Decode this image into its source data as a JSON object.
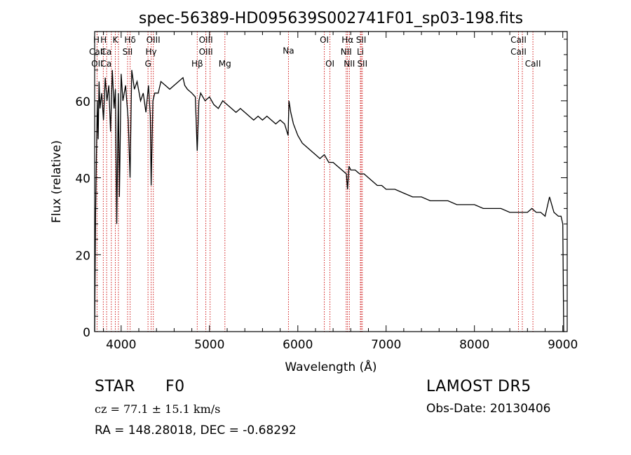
{
  "chart_data": {
    "type": "line",
    "title": "spec-56389-HD095639S002741F01_sp03-198.fits",
    "xlabel": "Wavelength (Å)",
    "ylabel": "Flux (relative)",
    "xlim": [
      3700,
      9050
    ],
    "ylim": [
      0,
      78
    ],
    "x_ticks": [
      4000,
      5000,
      6000,
      7000,
      8000,
      9000
    ],
    "y_ticks": [
      0,
      20,
      40,
      60
    ],
    "grid": false,
    "series": [
      {
        "x": [
          3700,
          3710,
          3720,
          3730,
          3740,
          3750,
          3760,
          3780,
          3800,
          3820,
          3840,
          3860,
          3880,
          3900,
          3920,
          3935,
          3950,
          3968,
          3980,
          4000,
          4020,
          4050,
          4080,
          4101,
          4120,
          4150,
          4180,
          4220,
          4250,
          4280,
          4310,
          4330,
          4340,
          4360,
          4380,
          4420,
          4450,
          4500,
          4550,
          4600,
          4650,
          4700,
          4720,
          4750,
          4800,
          4840,
          4861,
          4880,
          4900,
          4950,
          5000,
          5050,
          5100,
          5150,
          5200,
          5250,
          5300,
          5350,
          5400,
          5450,
          5500,
          5550,
          5600,
          5650,
          5700,
          5750,
          5800,
          5850,
          5890,
          5900,
          5920,
          5950,
          6000,
          6050,
          6100,
          6150,
          6200,
          6250,
          6300,
          6350,
          6400,
          6450,
          6500,
          6550,
          6563,
          6580,
          6600,
          6650,
          6700,
          6750,
          6800,
          6850,
          6900,
          6950,
          7000,
          7100,
          7200,
          7300,
          7400,
          7500,
          7600,
          7700,
          7800,
          7900,
          8000,
          8100,
          8200,
          8300,
          8400,
          8450,
          8500,
          8550,
          8600,
          8650,
          8700,
          8750,
          8800,
          8850,
          8900,
          8950,
          8980,
          9000,
          9010,
          9020
        ],
        "y": [
          0,
          30,
          45,
          60,
          50,
          65,
          58,
          62,
          55,
          66,
          60,
          64,
          52,
          68,
          58,
          63,
          28,
          62,
          35,
          67,
          60,
          64,
          55,
          40,
          68,
          63,
          65,
          60,
          62,
          57,
          64,
          56,
          38,
          60,
          62,
          62,
          65,
          64,
          63,
          64,
          65,
          66,
          64,
          63,
          62,
          61,
          47,
          60,
          62,
          60,
          61,
          59,
          58,
          60,
          59,
          58,
          57,
          58,
          57,
          56,
          55,
          56,
          55,
          56,
          55,
          54,
          55,
          54,
          51,
          60,
          57,
          54,
          51,
          49,
          48,
          47,
          46,
          45,
          46,
          44,
          44,
          43,
          42,
          41,
          37,
          43,
          42,
          42,
          41,
          41,
          40,
          39,
          38,
          38,
          37,
          37,
          36,
          35,
          35,
          34,
          34,
          34,
          33,
          33,
          33,
          32,
          32,
          32,
          31,
          31,
          31,
          31,
          31,
          32,
          31,
          31,
          30,
          35,
          31,
          30,
          30,
          28,
          0,
          0
        ]
      }
    ],
    "lines": [
      {
        "wl": 3727,
        "labels": [
          "OII"
        ]
      },
      {
        "wl": 3798,
        "labels": [
          "H"
        ]
      },
      {
        "wl": 3836,
        "labels": [
          "H"
        ]
      },
      {
        "wl": 3889,
        "labels": [
          "CaII"
        ]
      },
      {
        "wl": 3934,
        "labels": [
          "K"
        ]
      },
      {
        "wl": 3969,
        "labels": [
          "H"
        ]
      },
      {
        "wl": 4102,
        "labels": [
          "Hδ"
        ]
      },
      {
        "wl": 4073,
        "labels": [
          "SII"
        ]
      },
      {
        "wl": 4304,
        "labels": [
          "G"
        ]
      },
      {
        "wl": 4340,
        "labels": [
          "Hγ"
        ]
      },
      {
        "wl": 4364,
        "labels": [
          "OIII"
        ]
      },
      {
        "wl": 4861,
        "labels": [
          "Hβ"
        ]
      },
      {
        "wl": 4959,
        "labels": [
          "OIII"
        ]
      },
      {
        "wl": 5007,
        "labels": [
          "OIII"
        ]
      },
      {
        "wl": 5175,
        "labels": [
          "Mg"
        ]
      },
      {
        "wl": 5894,
        "labels": [
          "Na"
        ]
      },
      {
        "wl": 6300,
        "labels": [
          "OI"
        ]
      },
      {
        "wl": 6364,
        "labels": [
          "OI"
        ]
      },
      {
        "wl": 6548,
        "labels": [
          "NII"
        ]
      },
      {
        "wl": 6563,
        "labels": [
          "Hα"
        ]
      },
      {
        "wl": 6584,
        "labels": [
          "NII"
        ]
      },
      {
        "wl": 6708,
        "labels": [
          "Li"
        ]
      },
      {
        "wl": 6717,
        "labels": [
          "SII"
        ]
      },
      {
        "wl": 6731,
        "labels": [
          "SII"
        ]
      },
      {
        "wl": 8498,
        "labels": [
          "CaII"
        ]
      },
      {
        "wl": 8542,
        "labels": [
          "CaII"
        ]
      },
      {
        "wl": 8662,
        "labels": [
          "CaII"
        ]
      }
    ],
    "top_labels": [
      {
        "text": "H",
        "row": 1,
        "wl": 3720
      },
      {
        "text": "H",
        "row": 1,
        "wl": 3800
      },
      {
        "text": "K",
        "row": 1,
        "wl": 3934
      },
      {
        "text": "Hδ",
        "row": 1,
        "wl": 4102
      },
      {
        "text": "OIII",
        "row": 1,
        "wl": 4364
      },
      {
        "text": "OIII",
        "row": 1,
        "wl": 4959
      },
      {
        "text": "OI",
        "row": 1,
        "wl": 6300
      },
      {
        "text": "Hα",
        "row": 1,
        "wl": 6563
      },
      {
        "text": "SII",
        "row": 1,
        "wl": 6717
      },
      {
        "text": "CaII",
        "row": 1,
        "wl": 8498
      },
      {
        "text": "CaII",
        "row": 2,
        "wl": 3727
      },
      {
        "text": "Ca",
        "row": 2,
        "wl": 3830
      },
      {
        "text": "SII",
        "row": 2,
        "wl": 4073
      },
      {
        "text": "Hγ",
        "row": 2,
        "wl": 4340
      },
      {
        "text": "OIII",
        "row": 2,
        "wl": 4959
      },
      {
        "text": "NII",
        "row": 2,
        "wl": 6548
      },
      {
        "text": "Li",
        "row": 2,
        "wl": 6708
      },
      {
        "text": "CaII",
        "row": 2,
        "wl": 8498
      },
      {
        "text": "OII",
        "row": 3,
        "wl": 3727
      },
      {
        "text": "Ca",
        "row": 3,
        "wl": 3830
      },
      {
        "text": "G",
        "row": 3,
        "wl": 4304
      },
      {
        "text": "Hβ",
        "row": 3,
        "wl": 4861
      },
      {
        "text": "Mg",
        "row": 3,
        "wl": 5175
      },
      {
        "text": "Na",
        "row": 1.9,
        "wl": 5894
      },
      {
        "text": "OI",
        "row": 3,
        "wl": 6364
      },
      {
        "text": "NII",
        "row": 3,
        "wl": 6584
      },
      {
        "text": "SII",
        "row": 3,
        "wl": 6731
      },
      {
        "text": "CaII",
        "row": 3,
        "wl": 8662
      }
    ],
    "colors": {
      "spectrum": "#000000",
      "line_markers": "#cc0000",
      "axes": "#000000"
    }
  },
  "info": {
    "object_class": "STAR",
    "subclass": "F0",
    "survey": "LAMOST DR5",
    "cz": "cz = 77.1 ± 15.1 km/s",
    "obs_date": "Obs-Date: 20130406",
    "coords": "RA = 148.28018, DEC =  -0.68292"
  }
}
